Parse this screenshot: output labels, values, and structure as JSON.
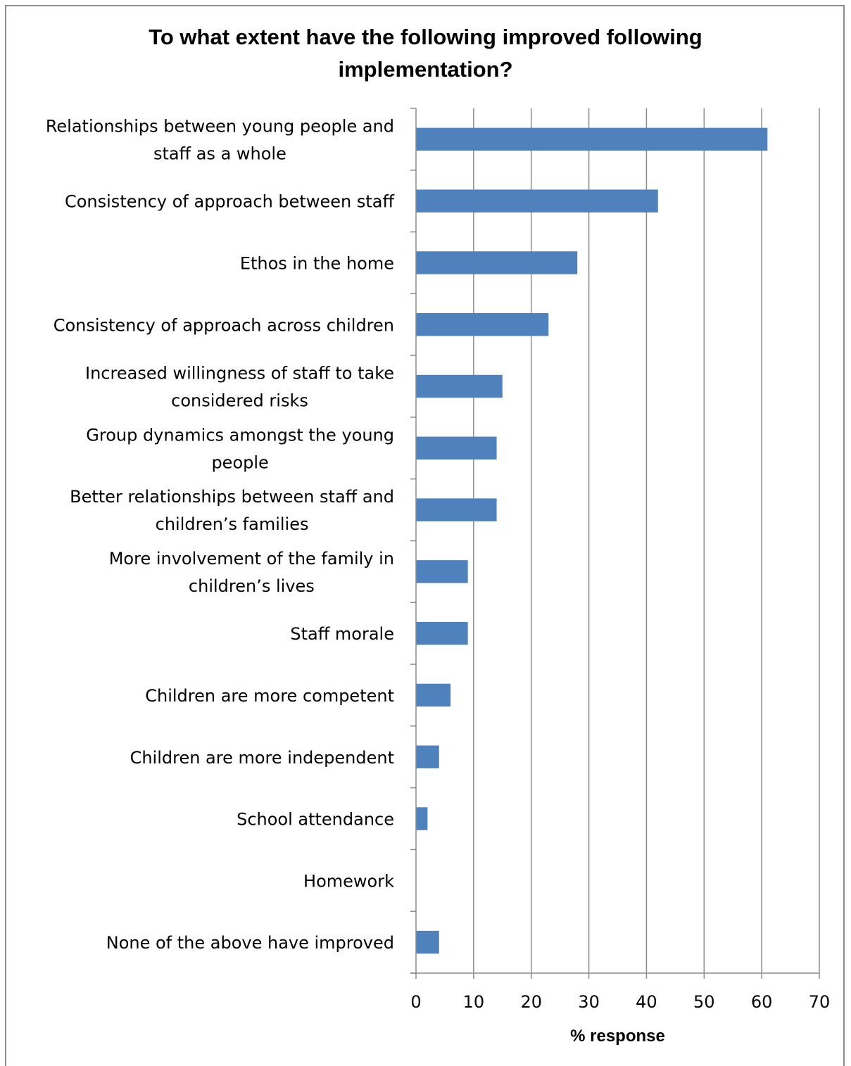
{
  "chart_data": {
    "type": "bar",
    "orientation": "horizontal",
    "title_lines": [
      "To what extent have the following improved following",
      "implementation?"
    ],
    "categories": [
      [
        "Relationships between young people and",
        "staff as a whole"
      ],
      [
        "Consistency of approach between staff"
      ],
      [
        "Ethos in the home"
      ],
      [
        "Consistency of approach across children"
      ],
      [
        "Increased willingness of staff to take",
        "considered risks"
      ],
      [
        "Group dynamics amongst the young",
        "people"
      ],
      [
        "Better relationships between staff and",
        "children’s families"
      ],
      [
        "More involvement of the family in",
        "children’s lives"
      ],
      [
        "Staff morale"
      ],
      [
        "Children are more competent"
      ],
      [
        "Children are more independent"
      ],
      [
        "School attendance"
      ],
      [
        "Homework"
      ],
      [
        "None of the above have improved"
      ]
    ],
    "values": [
      61,
      42,
      28,
      23,
      15,
      14,
      14,
      9,
      9,
      6,
      4,
      2,
      0,
      4
    ],
    "xlabel": "% response",
    "xlim": [
      0,
      70
    ],
    "xticks": [
      0,
      10,
      20,
      30,
      40,
      50,
      60,
      70
    ],
    "grid": "vertical",
    "bar_color": "#4F81BD"
  }
}
